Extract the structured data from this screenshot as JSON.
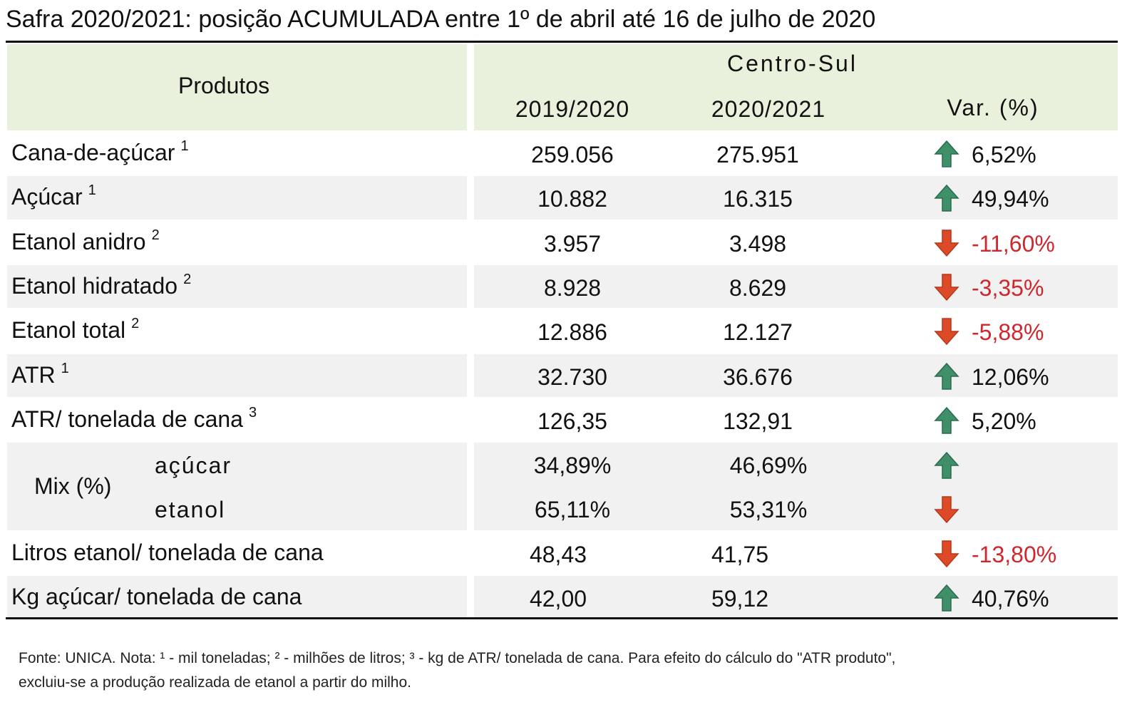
{
  "title": "Safra 2020/2021: posição ACUMULADA entre 1º de abril até 16 de julho de 2020",
  "table": {
    "header": {
      "products": "Produtos",
      "region": "Centro-Sul",
      "columns": [
        "2019/2020",
        "2020/2021",
        "Var. (%)"
      ]
    },
    "rows": [
      {
        "label": "Cana-de-açúcar",
        "note": "1",
        "values": [
          "259.056",
          "275.951"
        ],
        "var": "6,52%",
        "trend": "up"
      },
      {
        "label": "Açúcar",
        "note": "1",
        "values": [
          "10.882",
          "16.315"
        ],
        "var": "49,94%",
        "trend": "up"
      },
      {
        "label": "Etanol anidro",
        "note": "2",
        "values": [
          "3.957",
          "3.498"
        ],
        "var": "-11,60%",
        "trend": "down"
      },
      {
        "label": "Etanol hidratado",
        "note": "2",
        "values": [
          "8.928",
          "8.629"
        ],
        "var": "-3,35%",
        "trend": "down"
      },
      {
        "label": "Etanol total",
        "note": "2",
        "values": [
          "12.886",
          "12.127"
        ],
        "var": "-5,88%",
        "trend": "down"
      },
      {
        "label": "ATR",
        "note": "1",
        "values": [
          "32.730",
          "36.676"
        ],
        "var": "12,06%",
        "trend": "up"
      },
      {
        "label": "ATR/ tonelada de cana",
        "note": "3",
        "values": [
          "126,35",
          "132,91"
        ],
        "var": "5,20%",
        "trend": "up"
      },
      {
        "label": "Mix (%)",
        "items": [
          {
            "label": "açúcar",
            "values": [
              "34,89%",
              "46,69%"
            ],
            "trend": "up"
          },
          {
            "label": "etanol",
            "values": [
              "65,11%",
              "53,31%"
            ],
            "trend": "down"
          }
        ]
      },
      {
        "label": "Litros etanol/ tonelada de cana",
        "values": [
          "48,43",
          "41,75"
        ],
        "var": "-13,80%",
        "trend": "down"
      },
      {
        "label": "Kg açúcar/ tonelada de cana",
        "values": [
          "42,00",
          "59,12"
        ],
        "var": "40,76%",
        "trend": "up"
      }
    ]
  },
  "footer": [
    "Fonte: UNICA. Nota: ¹ - mil toneladas; ² - milhões de litros; ³ - kg de ATR/ tonelada de cana. Para efeito do cálculo do \"ATR produto\",",
    "excluiu-se a produção realizada de etanol a partir do milho."
  ]
}
